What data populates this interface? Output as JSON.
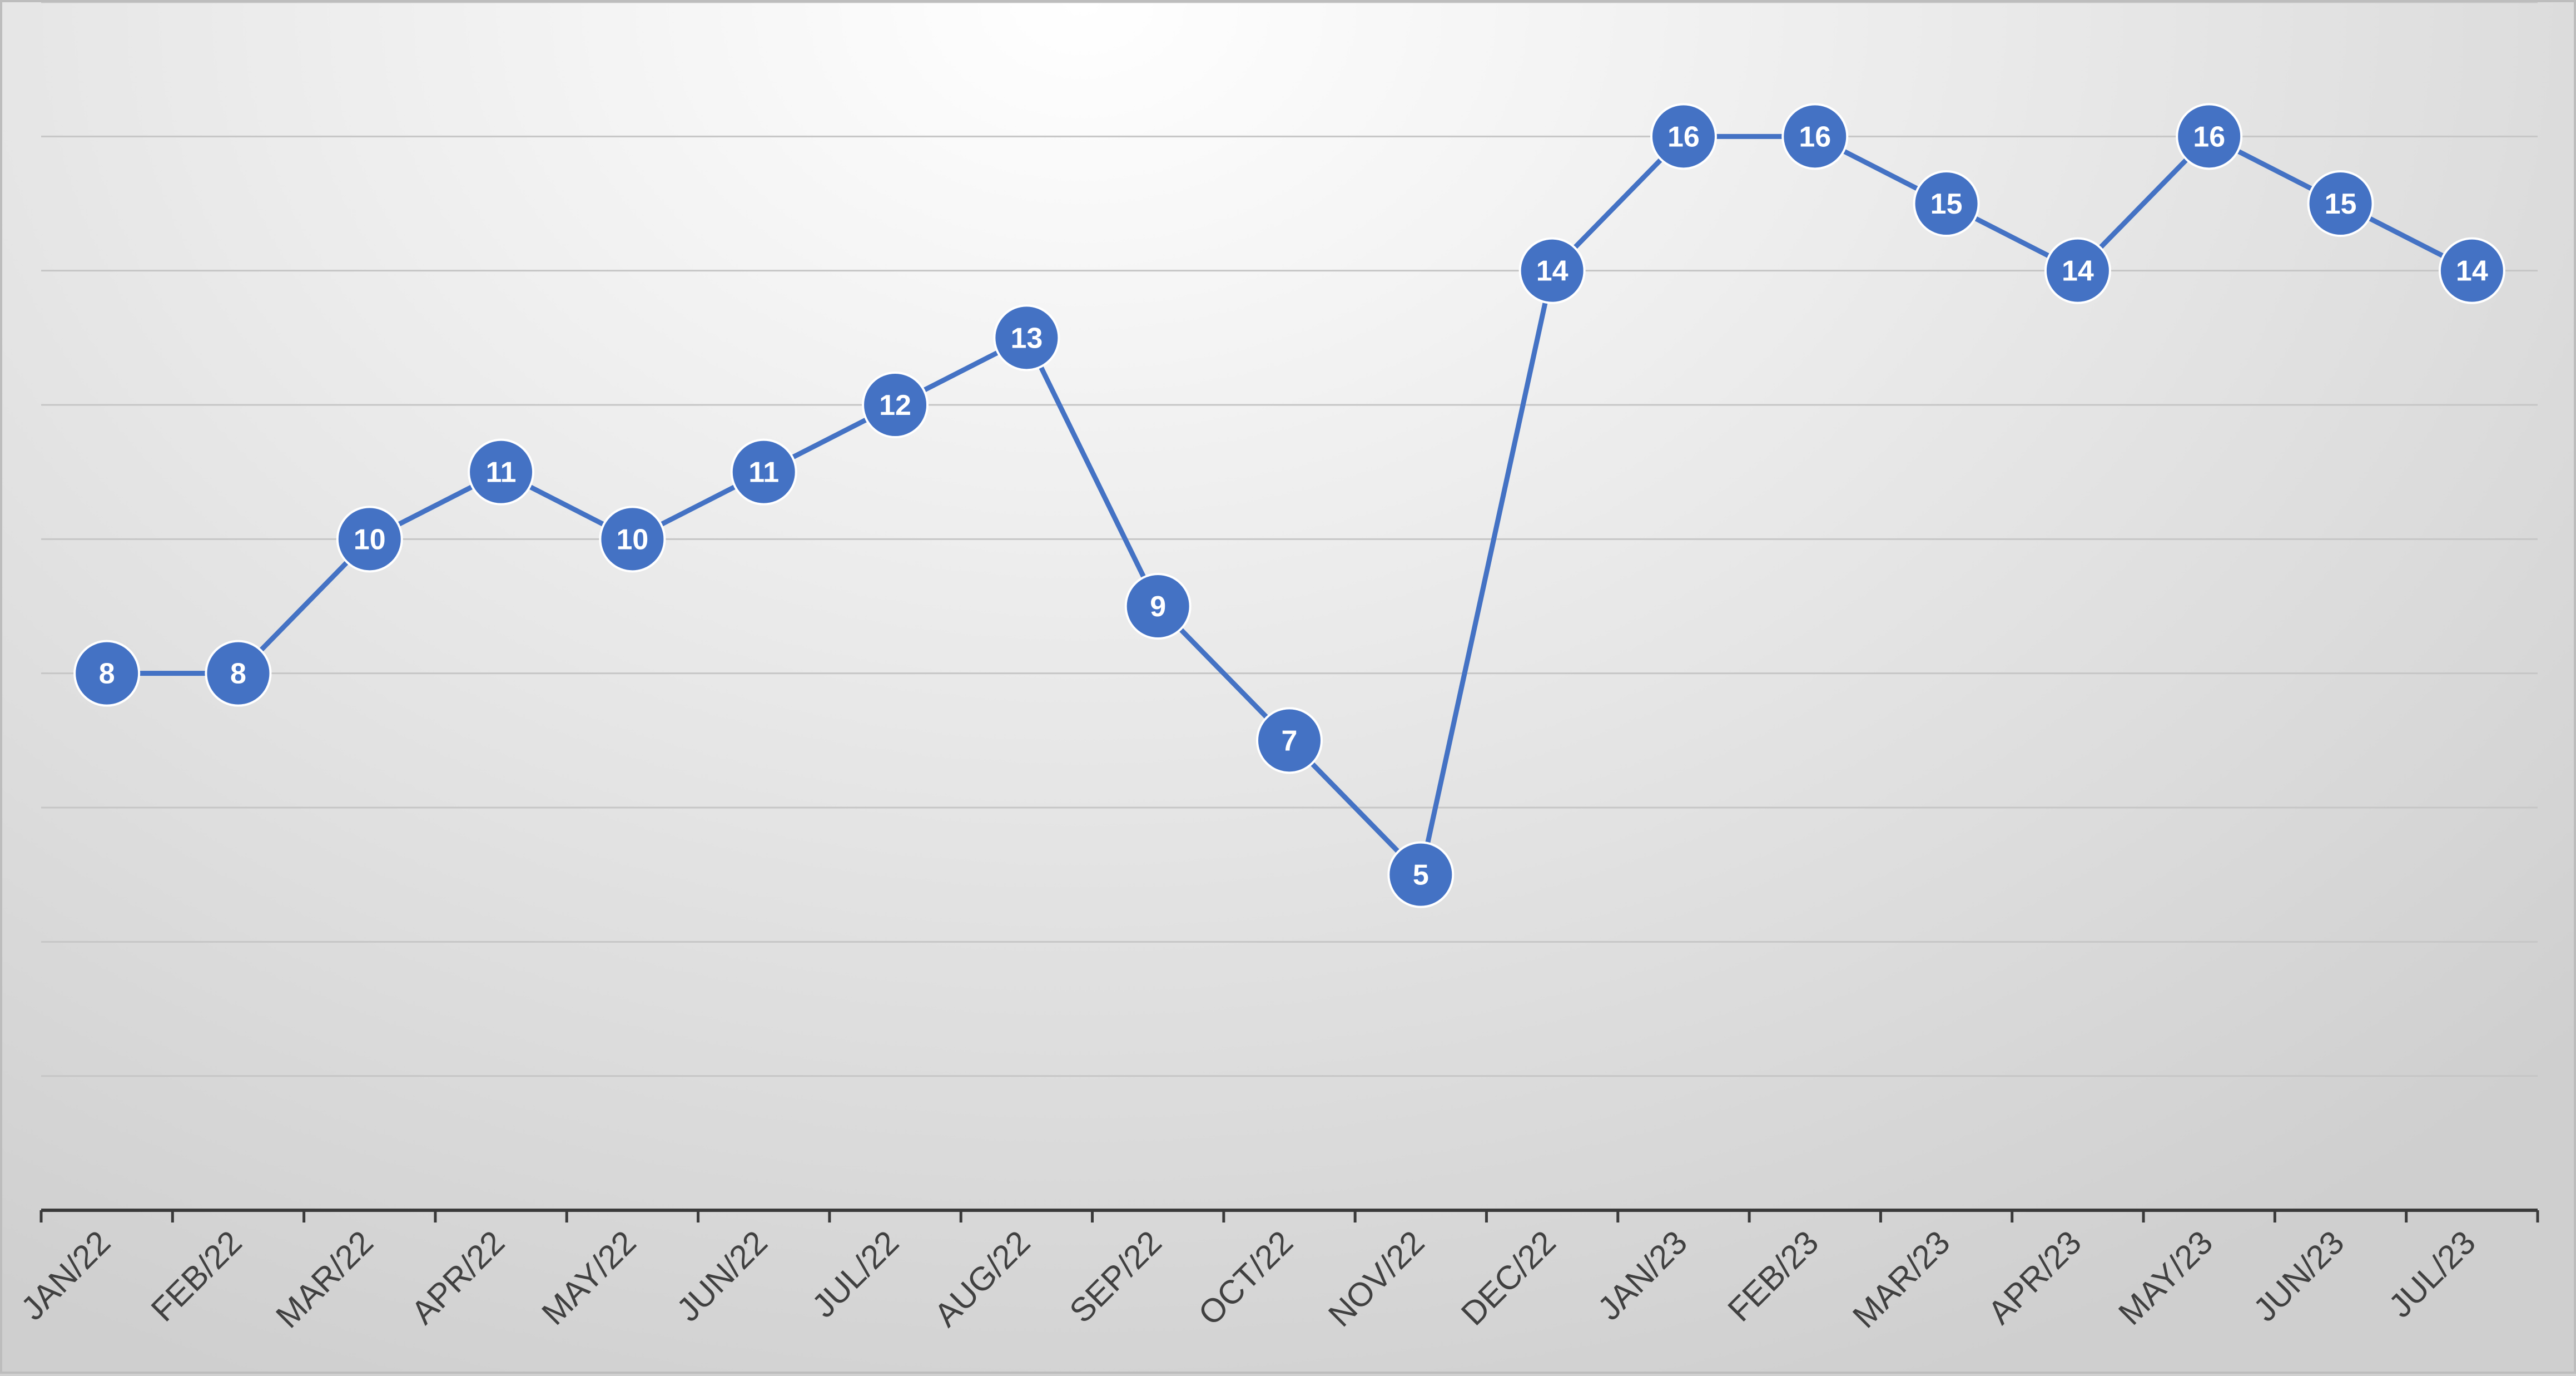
{
  "chart_data": {
    "type": "line",
    "title": "",
    "xlabel": "",
    "ylabel": "",
    "ylim": [
      0,
      18
    ],
    "grid": true,
    "y_axis_labels_shown": false,
    "legend": "none",
    "data_labels": true,
    "series_color": "#4472c4",
    "categories": [
      "JAN/22",
      "FEB/22",
      "MAR/22",
      "APR/22",
      "MAY/22",
      "JUN/22",
      "JUL/22",
      "AUG/22",
      "SEP/22",
      "OCT/22",
      "NOV/22",
      "DEC/22",
      "JAN/23",
      "FEB/23",
      "MAR/23",
      "APR/23",
      "MAY/23",
      "JUN/23",
      "JUL/23"
    ],
    "series": [
      {
        "values": [
          8,
          8,
          10,
          11,
          10,
          11,
          12,
          13,
          9,
          7,
          5,
          14,
          16,
          16,
          15,
          14,
          16,
          15,
          14
        ],
        "labels": [
          "8",
          "8",
          "10",
          "11",
          "10",
          "11",
          "12",
          "13",
          "9",
          "7",
          "5",
          "14",
          "16",
          "16",
          "15",
          "14",
          "16",
          "15",
          "14"
        ]
      }
    ]
  }
}
